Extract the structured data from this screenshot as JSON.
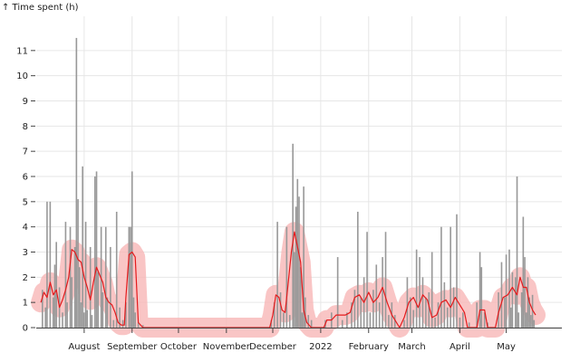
{
  "chart_data": {
    "type": "bar",
    "ylabel": "↑ Time spent (h)",
    "ylim": [
      0,
      12
    ],
    "yticks": [
      0,
      1,
      2,
      3,
      4,
      5,
      6,
      7,
      8,
      9,
      10,
      11
    ],
    "xlim": [
      "2021-07-01",
      "2022-06-06"
    ],
    "grid": true,
    "xticks": [
      {
        "date": "2021-08-01",
        "label": "August"
      },
      {
        "date": "2021-09-01",
        "label": "September"
      },
      {
        "date": "2021-10-01",
        "label": "October"
      },
      {
        "date": "2021-11-01",
        "label": "November"
      },
      {
        "date": "2021-12-01",
        "label": "December"
      },
      {
        "date": "2022-01-01",
        "label": "2022"
      },
      {
        "date": "2022-02-01",
        "label": "February"
      },
      {
        "date": "2022-03-01",
        "label": "March"
      },
      {
        "date": "2022-04-01",
        "label": "April"
      },
      {
        "date": "2022-05-01",
        "label": "May"
      }
    ],
    "colors": {
      "bar": "#999999",
      "line": "#e41a1c",
      "band": "#f7b6b6"
    },
    "series": [
      {
        "type": "bar",
        "points": [
          [
            "2021-07-05",
            1.5
          ],
          [
            "2021-07-07",
            0.8
          ],
          [
            "2021-07-08",
            5.0
          ],
          [
            "2021-07-10",
            5.0
          ],
          [
            "2021-07-12",
            1.2
          ],
          [
            "2021-07-13",
            2.5
          ],
          [
            "2021-07-14",
            3.4
          ],
          [
            "2021-07-16",
            1.6
          ],
          [
            "2021-07-18",
            0.6
          ],
          [
            "2021-07-20",
            4.2
          ],
          [
            "2021-07-21",
            1.0
          ],
          [
            "2021-07-23",
            4.0
          ],
          [
            "2021-07-24",
            2.0
          ],
          [
            "2021-07-26",
            3.2
          ],
          [
            "2021-07-27",
            11.5
          ],
          [
            "2021-07-28",
            5.1
          ],
          [
            "2021-07-29",
            2.4
          ],
          [
            "2021-07-30",
            1.0
          ],
          [
            "2021-07-31",
            6.4
          ],
          [
            "2021-08-01",
            0.6
          ],
          [
            "2021-08-02",
            4.2
          ],
          [
            "2021-08-03",
            0.7
          ],
          [
            "2021-08-05",
            3.2
          ],
          [
            "2021-08-06",
            0.5
          ],
          [
            "2021-08-08",
            6.0
          ],
          [
            "2021-08-09",
            6.2
          ],
          [
            "2021-08-10",
            2.2
          ],
          [
            "2021-08-12",
            4.0
          ],
          [
            "2021-08-13",
            1.4
          ],
          [
            "2021-08-15",
            4.0
          ],
          [
            "2021-08-16",
            1.2
          ],
          [
            "2021-08-18",
            3.2
          ],
          [
            "2021-08-20",
            0.3
          ],
          [
            "2021-08-22",
            4.6
          ],
          [
            "2021-08-24",
            0.8
          ],
          [
            "2021-08-26",
            0.3
          ],
          [
            "2021-08-28",
            1.0
          ],
          [
            "2021-08-30",
            4.0
          ],
          [
            "2021-08-31",
            4.0
          ],
          [
            "2021-09-01",
            6.2
          ],
          [
            "2021-09-02",
            1.2
          ],
          [
            "2021-09-03",
            0.6
          ],
          [
            "2021-09-05",
            0.2
          ],
          [
            "2021-09-08",
            0.1
          ],
          [
            "2021-11-30",
            0.3
          ],
          [
            "2021-12-02",
            1.0
          ],
          [
            "2021-12-04",
            4.2
          ],
          [
            "2021-12-06",
            1.4
          ],
          [
            "2021-12-08",
            0.6
          ],
          [
            "2021-12-10",
            4.0
          ],
          [
            "2021-12-12",
            0.5
          ],
          [
            "2021-12-14",
            7.3
          ],
          [
            "2021-12-15",
            3.0
          ],
          [
            "2021-12-16",
            4.8
          ],
          [
            "2021-12-17",
            5.9
          ],
          [
            "2021-12-18",
            5.2
          ],
          [
            "2021-12-19",
            2.4
          ],
          [
            "2021-12-20",
            0.6
          ],
          [
            "2021-12-21",
            5.6
          ],
          [
            "2021-12-22",
            1.2
          ],
          [
            "2021-12-24",
            0.5
          ],
          [
            "2021-12-26",
            0.3
          ],
          [
            "2022-01-04",
            0.3
          ],
          [
            "2022-01-08",
            0.6
          ],
          [
            "2022-01-12",
            2.8
          ],
          [
            "2022-01-15",
            0.3
          ],
          [
            "2022-01-18",
            0.6
          ],
          [
            "2022-01-21",
            1.0
          ],
          [
            "2022-01-23",
            1.5
          ],
          [
            "2022-01-25",
            4.6
          ],
          [
            "2022-01-27",
            1.2
          ],
          [
            "2022-01-29",
            2.0
          ],
          [
            "2022-01-31",
            3.8
          ],
          [
            "2022-02-02",
            0.6
          ],
          [
            "2022-02-04",
            1.5
          ],
          [
            "2022-02-06",
            2.5
          ],
          [
            "2022-02-08",
            1.0
          ],
          [
            "2022-02-10",
            2.8
          ],
          [
            "2022-02-12",
            3.8
          ],
          [
            "2022-02-14",
            0.5
          ],
          [
            "2022-02-16",
            1.0
          ],
          [
            "2022-02-18",
            0.5
          ],
          [
            "2022-02-24",
            0.3
          ],
          [
            "2022-02-26",
            2.0
          ],
          [
            "2022-02-28",
            1.2
          ],
          [
            "2022-03-02",
            0.7
          ],
          [
            "2022-03-04",
            3.1
          ],
          [
            "2022-03-06",
            2.8
          ],
          [
            "2022-03-08",
            2.0
          ],
          [
            "2022-03-10",
            1.2
          ],
          [
            "2022-03-12",
            1.4
          ],
          [
            "2022-03-14",
            3.0
          ],
          [
            "2022-03-16",
            0.4
          ],
          [
            "2022-03-18",
            1.0
          ],
          [
            "2022-03-20",
            4.0
          ],
          [
            "2022-03-22",
            1.8
          ],
          [
            "2022-03-24",
            0.8
          ],
          [
            "2022-03-26",
            4.0
          ],
          [
            "2022-03-28",
            1.6
          ],
          [
            "2022-03-30",
            4.5
          ],
          [
            "2022-04-01",
            0.4
          ],
          [
            "2022-04-03",
            0.6
          ],
          [
            "2022-04-07",
            0.2
          ],
          [
            "2022-04-12",
            1.0
          ],
          [
            "2022-04-14",
            3.0
          ],
          [
            "2022-04-15",
            2.4
          ],
          [
            "2022-04-17",
            0.6
          ],
          [
            "2022-04-19",
            0.2
          ],
          [
            "2022-04-26",
            1.4
          ],
          [
            "2022-04-28",
            2.6
          ],
          [
            "2022-04-30",
            1.2
          ],
          [
            "2022-05-01",
            2.9
          ],
          [
            "2022-05-03",
            3.1
          ],
          [
            "2022-05-04",
            0.8
          ],
          [
            "2022-05-05",
            2.2
          ],
          [
            "2022-05-07",
            2.0
          ],
          [
            "2022-05-08",
            6.0
          ],
          [
            "2022-05-09",
            0.6
          ],
          [
            "2022-05-11",
            1.4
          ],
          [
            "2022-05-12",
            4.4
          ],
          [
            "2022-05-13",
            2.8
          ],
          [
            "2022-05-14",
            0.6
          ],
          [
            "2022-05-15",
            2.0
          ],
          [
            "2022-05-16",
            1.2
          ],
          [
            "2022-05-17",
            0.5
          ],
          [
            "2022-05-18",
            1.3
          ],
          [
            "2022-05-19",
            0.3
          ]
        ]
      },
      {
        "type": "line",
        "points": [
          [
            "2021-07-04",
            1.0
          ],
          [
            "2021-07-06",
            1.4
          ],
          [
            "2021-07-08",
            1.2
          ],
          [
            "2021-07-10",
            1.8
          ],
          [
            "2021-07-12",
            1.3
          ],
          [
            "2021-07-14",
            1.5
          ],
          [
            "2021-07-16",
            0.8
          ],
          [
            "2021-07-18",
            1.1
          ],
          [
            "2021-07-20",
            1.5
          ],
          [
            "2021-07-22",
            2.0
          ],
          [
            "2021-07-24",
            3.1
          ],
          [
            "2021-07-26",
            3.0
          ],
          [
            "2021-07-28",
            2.7
          ],
          [
            "2021-07-30",
            2.6
          ],
          [
            "2021-08-01",
            2.0
          ],
          [
            "2021-08-03",
            1.6
          ],
          [
            "2021-08-05",
            1.1
          ],
          [
            "2021-08-07",
            1.8
          ],
          [
            "2021-08-09",
            2.4
          ],
          [
            "2021-08-11",
            2.1
          ],
          [
            "2021-08-13",
            1.8
          ],
          [
            "2021-08-15",
            1.2
          ],
          [
            "2021-08-17",
            1.0
          ],
          [
            "2021-08-19",
            0.9
          ],
          [
            "2021-08-21",
            0.6
          ],
          [
            "2021-08-23",
            0.2
          ],
          [
            "2021-08-25",
            0.1
          ],
          [
            "2021-08-27",
            0.1
          ],
          [
            "2021-08-28",
            1.2
          ],
          [
            "2021-08-30",
            2.9
          ],
          [
            "2021-09-01",
            3.0
          ],
          [
            "2021-09-03",
            2.8
          ],
          [
            "2021-09-05",
            0.2
          ],
          [
            "2021-09-08",
            0.0
          ],
          [
            "2021-11-29",
            0.0
          ],
          [
            "2021-12-01",
            0.5
          ],
          [
            "2021-12-03",
            1.3
          ],
          [
            "2021-12-05",
            1.2
          ],
          [
            "2021-12-07",
            0.7
          ],
          [
            "2021-12-09",
            0.6
          ],
          [
            "2021-12-11",
            1.8
          ],
          [
            "2021-12-13",
            3.0
          ],
          [
            "2021-12-15",
            3.8
          ],
          [
            "2021-12-17",
            3.2
          ],
          [
            "2021-12-19",
            2.6
          ],
          [
            "2021-12-21",
            0.7
          ],
          [
            "2021-12-23",
            0.2
          ],
          [
            "2021-12-26",
            0.0
          ],
          [
            "2022-01-03",
            0.0
          ],
          [
            "2022-01-05",
            0.3
          ],
          [
            "2022-01-08",
            0.3
          ],
          [
            "2022-01-11",
            0.5
          ],
          [
            "2022-01-14",
            0.5
          ],
          [
            "2022-01-17",
            0.5
          ],
          [
            "2022-01-20",
            0.6
          ],
          [
            "2022-01-23",
            1.2
          ],
          [
            "2022-01-26",
            1.3
          ],
          [
            "2022-01-29",
            1.0
          ],
          [
            "2022-02-01",
            1.4
          ],
          [
            "2022-02-04",
            1.0
          ],
          [
            "2022-02-07",
            1.2
          ],
          [
            "2022-02-10",
            1.6
          ],
          [
            "2022-02-13",
            1.0
          ],
          [
            "2022-02-16",
            0.5
          ],
          [
            "2022-02-18",
            0.3
          ],
          [
            "2022-02-21",
            0.0
          ],
          [
            "2022-02-24",
            0.4
          ],
          [
            "2022-02-27",
            1.0
          ],
          [
            "2022-03-02",
            1.2
          ],
          [
            "2022-03-05",
            0.8
          ],
          [
            "2022-03-08",
            1.3
          ],
          [
            "2022-03-11",
            1.1
          ],
          [
            "2022-03-14",
            0.4
          ],
          [
            "2022-03-17",
            0.5
          ],
          [
            "2022-03-20",
            1.0
          ],
          [
            "2022-03-23",
            1.1
          ],
          [
            "2022-03-26",
            0.8
          ],
          [
            "2022-03-29",
            1.2
          ],
          [
            "2022-04-01",
            0.9
          ],
          [
            "2022-04-04",
            0.6
          ],
          [
            "2022-04-06",
            0.0
          ],
          [
            "2022-04-12",
            0.0
          ],
          [
            "2022-04-14",
            0.7
          ],
          [
            "2022-04-17",
            0.7
          ],
          [
            "2022-04-19",
            0.0
          ],
          [
            "2022-04-24",
            0.0
          ],
          [
            "2022-04-26",
            0.6
          ],
          [
            "2022-04-29",
            1.2
          ],
          [
            "2022-05-02",
            1.3
          ],
          [
            "2022-05-05",
            1.6
          ],
          [
            "2022-05-08",
            1.3
          ],
          [
            "2022-05-10",
            2.0
          ],
          [
            "2022-05-12",
            1.6
          ],
          [
            "2022-05-14",
            1.6
          ],
          [
            "2022-05-16",
            1.0
          ],
          [
            "2022-05-18",
            0.7
          ],
          [
            "2022-05-20",
            0.5
          ]
        ]
      }
    ]
  }
}
